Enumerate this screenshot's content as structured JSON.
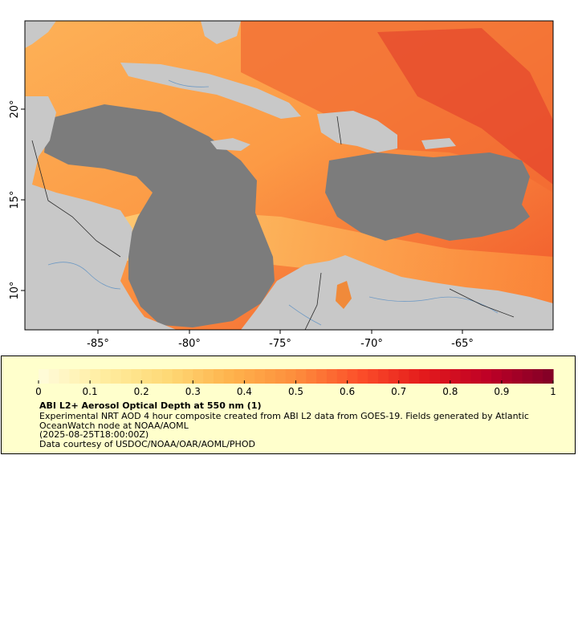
{
  "map": {
    "x_ticks": [
      "-85°",
      "-80°",
      "-75°",
      "-70°",
      "-65°"
    ],
    "y_ticks": [
      "20°",
      "15°",
      "10°"
    ],
    "colors": {
      "land": "#c8c8c8",
      "ocean_nodata": "#7c7c7c",
      "border": "#2a2a2a",
      "river": "#6f9ac4"
    }
  },
  "legend": {
    "colorbar_ticks": [
      "0",
      "0.1",
      "0.2",
      "0.3",
      "0.4",
      "0.5",
      "0.6",
      "0.7",
      "0.8",
      "0.9",
      "1"
    ],
    "range": [
      0,
      1
    ],
    "title": "ABI L2+ Aerosol Optical Depth at 550 nm (1)",
    "description": "Experimental NRT AOD 4 hour composite created from ABI L2 data from GOES-19. Fields generated by Atlantic OceanWatch node at NOAA/AOML",
    "timestamp": "(2025-08-25T18:00:00Z)",
    "credit": "Data courtesy of USDOC/NOAA/OAR/AOML/PHOD",
    "colormap": [
      "#fffcdc",
      "#ffeda0",
      "#fed976",
      "#feb24c",
      "#fd8d3c",
      "#fc4e2a",
      "#e31a1c",
      "#bd0026",
      "#800026"
    ]
  }
}
